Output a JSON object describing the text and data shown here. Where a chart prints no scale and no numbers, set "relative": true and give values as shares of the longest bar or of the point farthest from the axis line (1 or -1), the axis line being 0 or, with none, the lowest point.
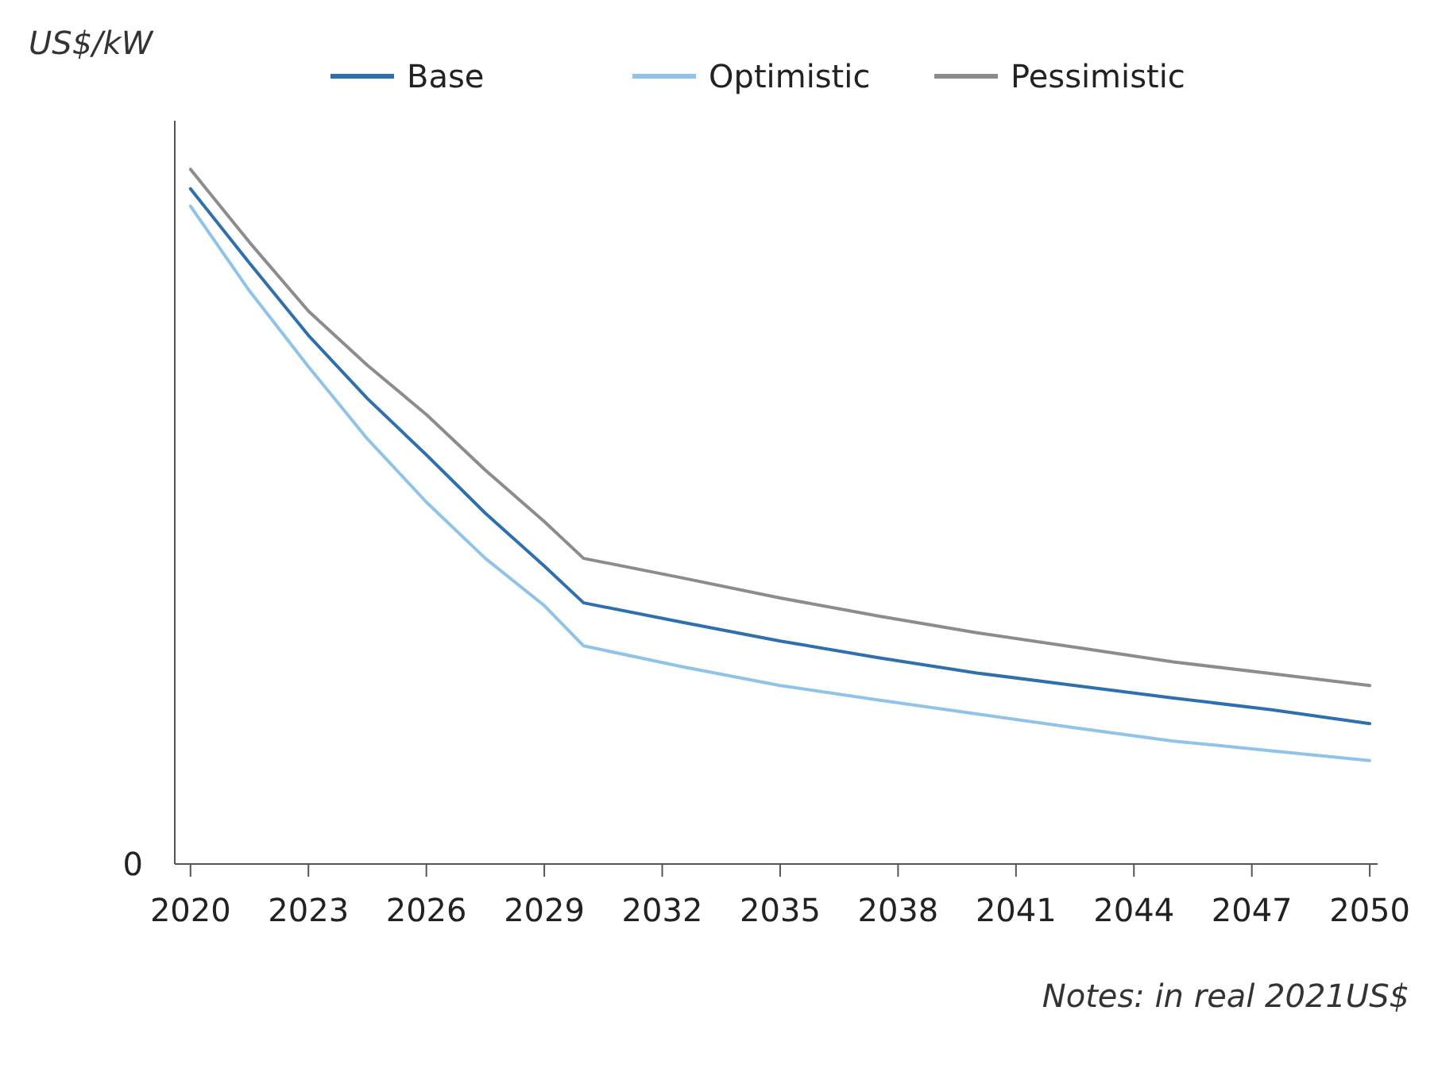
{
  "chart_data": {
    "type": "line",
    "relative": true,
    "ylabel": "US$/kW",
    "legend": "top",
    "x": [
      2020,
      2021.5,
      2023,
      2024.5,
      2026,
      2027.5,
      2029,
      2030,
      2032.5,
      2035,
      2037.5,
      2040,
      2042.5,
      2045,
      2047.5,
      2050
    ],
    "xlim": [
      2019.6,
      2050.2
    ],
    "xticks": [
      2020,
      2023,
      2026,
      2029,
      2032,
      2035,
      2038,
      2041,
      2044,
      2047,
      2050
    ],
    "series": [
      {
        "name": "Base",
        "color": "#2e6fad",
        "values": [
          0.972,
          0.865,
          0.761,
          0.67,
          0.589,
          0.505,
          0.429,
          0.376,
          0.348,
          0.321,
          0.297,
          0.275,
          0.257,
          0.239,
          0.222,
          0.202
        ]
      },
      {
        "name": "Optimistic",
        "color": "#8fc3e8",
        "values": [
          0.947,
          0.825,
          0.716,
          0.612,
          0.521,
          0.44,
          0.372,
          0.314,
          0.284,
          0.257,
          0.236,
          0.216,
          0.196,
          0.177,
          0.163,
          0.149
        ]
      },
      {
        "name": "Pessimistic",
        "color": "#8c8c8c",
        "values": [
          1,
          0.895,
          0.796,
          0.718,
          0.647,
          0.567,
          0.493,
          0.44,
          0.412,
          0.383,
          0.357,
          0.333,
          0.312,
          0.291,
          0.274,
          0.257
        ]
      }
    ],
    "annotations": [
      "0",
      "Notes: in real 2021US$"
    ]
  }
}
